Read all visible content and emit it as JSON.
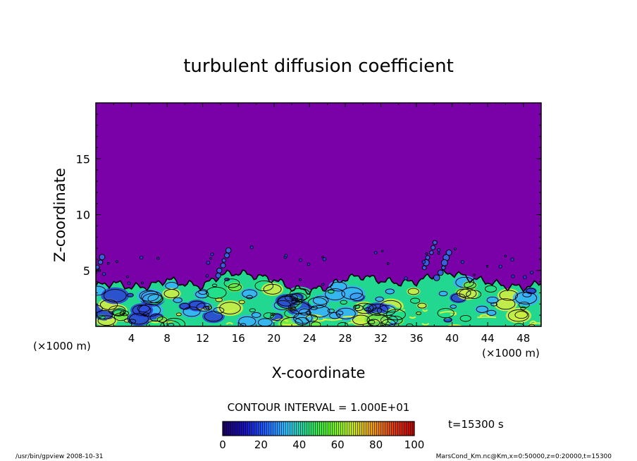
{
  "chart_data": {
    "type": "heatmap",
    "title": "turbulent diffusion coefficient",
    "xlabel": "X-coordinate",
    "ylabel": "Z-coordinate",
    "x_unit": "(×1000 m)",
    "z_unit": "(×1000 m)",
    "xlim": [
      0,
      50
    ],
    "ylim": [
      0,
      20
    ],
    "x_ticks": [
      4,
      8,
      12,
      16,
      20,
      24,
      28,
      32,
      36,
      40,
      44,
      48
    ],
    "y_ticks": [
      5,
      10,
      15
    ],
    "contour_interval": "CONTOUR INTERVAL = 1.000E+01",
    "time_label": "t=15300 s",
    "colorbar_ticks": [
      0,
      20,
      40,
      60,
      80,
      100
    ],
    "colorbar_range": [
      0,
      100
    ],
    "background_value": 0,
    "boundary_layer_top_km": [
      3.6,
      3.9,
      3.5,
      3.6,
      4.2,
      3.8,
      3.6,
      4.6,
      4.8,
      4.5,
      4.2,
      3.4,
      3.2,
      3.5,
      4.3,
      4.5,
      4.1,
      3.9,
      4.0,
      4.6,
      4.8,
      4.3,
      4.0,
      3.6,
      3.5,
      3.6,
      4.0
    ],
    "boundary_layer_x_km": [
      0,
      2,
      4,
      6,
      8,
      10,
      12,
      14,
      16,
      18,
      20,
      22,
      24,
      26,
      28,
      30,
      32,
      34,
      36,
      38,
      40,
      42,
      44,
      46,
      48,
      49,
      50
    ],
    "colors": {
      "background": "#7a00a8",
      "low": "#2c3cd8",
      "mid_low": "#3ab0ff",
      "mid": "#22e08a",
      "mid_high": "#7aee3c",
      "high": "#d8f040",
      "colorbar_stops": [
        "#1a0060",
        "#1a10c0",
        "#2060ff",
        "#30c0ff",
        "#20e080",
        "#60f020",
        "#c0f020",
        "#f0a010",
        "#e04010",
        "#c00000"
      ]
    }
  },
  "footer": {
    "left": "/usr/bin/gpview  2008-10-31",
    "right": "MarsCond_Km.nc@Km,x=0:50000,z=0:20000,t=15300"
  }
}
